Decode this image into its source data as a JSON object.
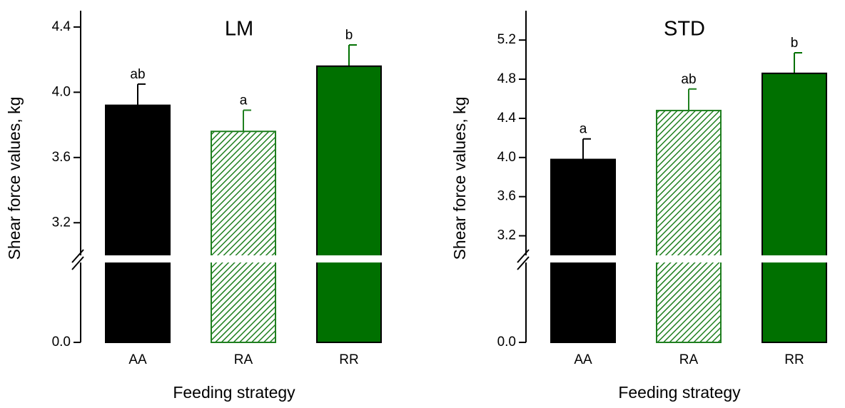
{
  "chart_data": [
    {
      "type": "bar",
      "title": "LM",
      "xlabel": "Feeding strategy",
      "ylabel": "Shear force values, kg",
      "categories": [
        "AA",
        "RA",
        "RR"
      ],
      "values": [
        3.92,
        3.76,
        4.16
      ],
      "errors": [
        0.13,
        0.13,
        0.13
      ],
      "annotations": [
        "ab",
        "a",
        "b"
      ],
      "colors": [
        "#000000",
        "#1f7f1f",
        "#007000"
      ],
      "hatch": [
        false,
        true,
        false
      ],
      "ylim": [
        0,
        4.5
      ],
      "ybreak": [
        0.5,
        3.0
      ],
      "yticks": [
        {
          "value": 0,
          "label": "0.0"
        },
        3.2,
        3.6,
        {
          "value": 4,
          "label": "4.0"
        },
        4.4
      ]
    },
    {
      "type": "bar",
      "title": "STD",
      "xlabel": "Feeding strategy",
      "ylabel": "Shear force values, kg",
      "categories": [
        "AA",
        "RA",
        "RR"
      ],
      "values": [
        3.98,
        4.48,
        4.86
      ],
      "errors": [
        0.21,
        0.22,
        0.21
      ],
      "annotations": [
        "a",
        "ab",
        "b"
      ],
      "colors": [
        "#000000",
        "#1f7f1f",
        "#007000"
      ],
      "hatch": [
        false,
        true,
        false
      ],
      "ylim": [
        0,
        5.5
      ],
      "ybreak": [
        0.8,
        3.0
      ],
      "yticks": [
        {
          "value": 0,
          "label": "0.0"
        },
        3.2,
        3.6,
        {
          "value": 4,
          "label": "4.0"
        },
        4.4,
        4.8,
        5.2
      ]
    }
  ]
}
